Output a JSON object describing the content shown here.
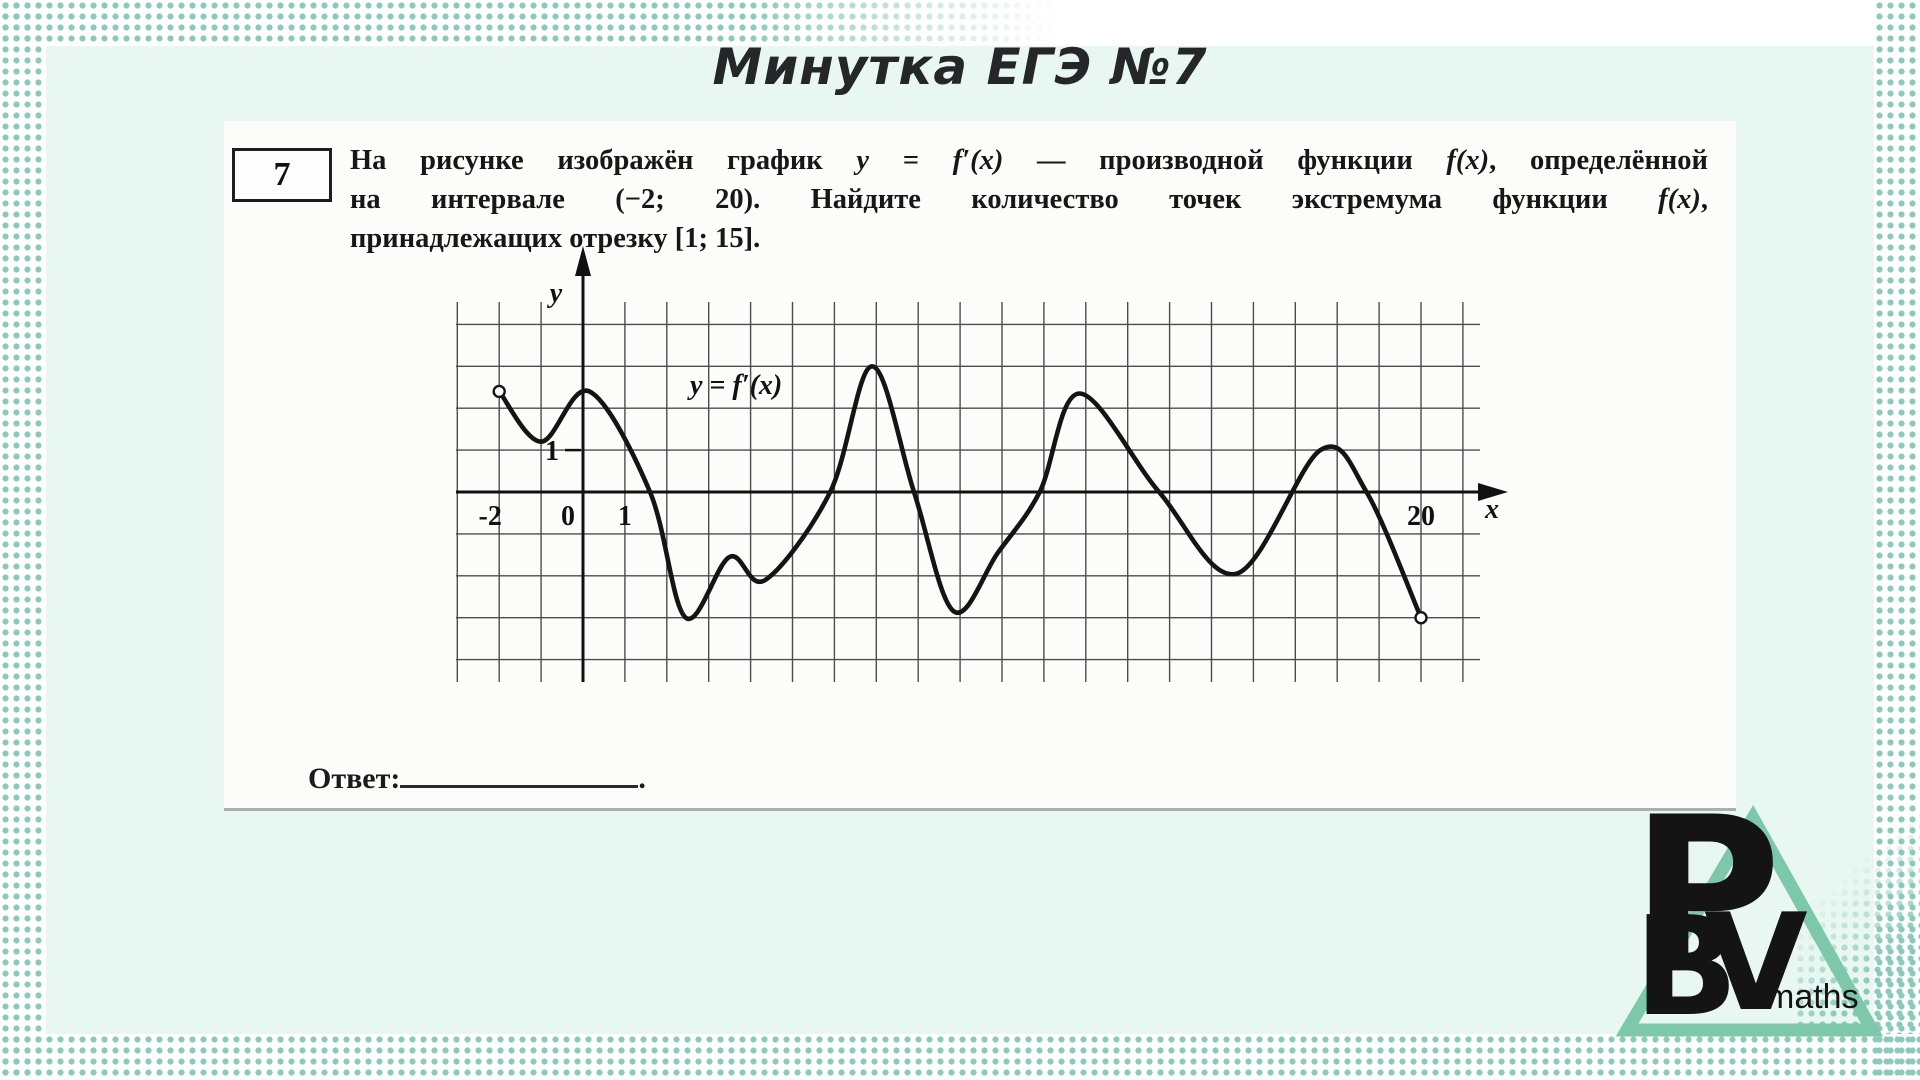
{
  "page": {
    "title": "Минутка ЕГЭ №7",
    "colors": {
      "dot_teal": "#8bc9b9",
      "inner_mint": "#e9f7f3",
      "card_bg": "#fcfcfb",
      "logo_green": "#7dc8aa",
      "ink": "#171717"
    }
  },
  "problem": {
    "number": "7",
    "lines": [
      [
        {
          "t": "На рисунке изображён график "
        },
        {
          "t": "y = f′(x)",
          "m": 1
        },
        {
          "t": " — производной функции "
        },
        {
          "t": "f(x)",
          "m": 1
        },
        {
          "t": ", определённой"
        }
      ],
      [
        {
          "t": "на интервале (−2; 20). Найдите количество точек экстремума функции "
        },
        {
          "t": "f(x)",
          "m": 1
        },
        {
          "t": ","
        }
      ],
      [
        {
          "t": "принадлежащих отрезку [1; 15]."
        }
      ]
    ],
    "answer_label": "Ответ:",
    "answer_value": "",
    "answer_suffix": "."
  },
  "chart_data": {
    "type": "line",
    "title": "y = f′(x)",
    "xlabel": "x",
    "ylabel": "y",
    "x_range": [
      -3,
      21
    ],
    "y_range": [
      -4,
      4
    ],
    "grid": true,
    "legend_position": "none",
    "x_tick_labels": [
      {
        "x": -2,
        "label": "-2"
      },
      {
        "x": 0,
        "label": "0"
      },
      {
        "x": 1,
        "label": "1"
      },
      {
        "x": 20,
        "label": "20"
      }
    ],
    "y_tick_labels": [
      {
        "y": 1,
        "label": "1"
      }
    ],
    "series": [
      {
        "name": "f'(x)",
        "points": [
          [
            -2,
            2.4
          ],
          [
            -1,
            1.2
          ],
          [
            0.15,
            2.4
          ],
          [
            1.6,
            0
          ],
          [
            2.45,
            -3
          ],
          [
            3.5,
            -1.55
          ],
          [
            4.35,
            -2.1
          ],
          [
            5.9,
            0
          ],
          [
            6.9,
            3
          ],
          [
            7.9,
            0
          ],
          [
            8.85,
            -2.85
          ],
          [
            9.9,
            -1.45
          ],
          [
            10.9,
            0
          ],
          [
            11.85,
            2.35
          ],
          [
            13.75,
            0
          ],
          [
            15.6,
            -1.95
          ],
          [
            17.6,
            1
          ],
          [
            18.7,
            0
          ],
          [
            20,
            -3
          ]
        ],
        "open_endpoints": [
          [
            -2,
            2.4
          ],
          [
            20,
            -3
          ]
        ]
      }
    ]
  },
  "logo": {
    "letters": [
      "P",
      "B",
      "V"
    ],
    "sub": "maths"
  }
}
